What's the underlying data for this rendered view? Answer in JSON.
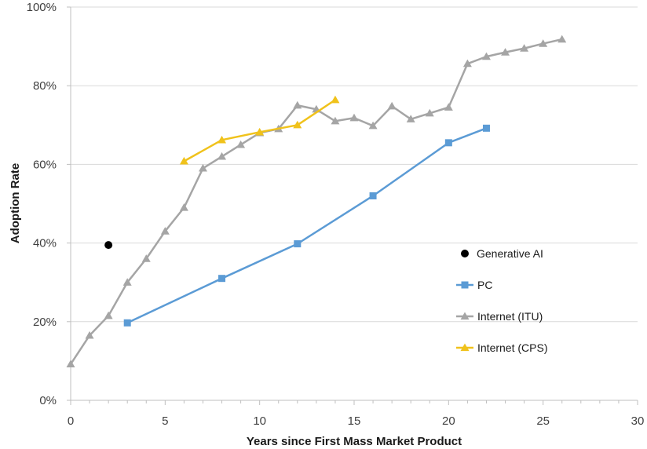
{
  "chart_data": {
    "type": "line",
    "title": "",
    "xlabel": "Years since First Mass Market Product",
    "ylabel": "Adoption Rate",
    "xlim": [
      0,
      30
    ],
    "ylim": [
      0,
      100
    ],
    "x_ticks": [
      0,
      5,
      10,
      15,
      20,
      25,
      30
    ],
    "y_ticks": [
      0,
      20,
      40,
      60,
      80,
      100
    ],
    "y_tick_format": "percent",
    "grid": "horizontal",
    "legend_position": "right",
    "series": [
      {
        "name": "Generative AI",
        "color": "#000000",
        "marker": "circle",
        "line": false,
        "points": [
          [
            2,
            39.5
          ]
        ]
      },
      {
        "name": "PC",
        "color": "#5b9bd5",
        "marker": "square",
        "line": true,
        "points": [
          [
            3,
            19.7
          ],
          [
            8,
            31
          ],
          [
            12,
            39.8
          ],
          [
            16,
            52
          ],
          [
            20,
            65.5
          ],
          [
            22,
            69.2
          ]
        ]
      },
      {
        "name": "Internet (ITU)",
        "color": "#a5a5a5",
        "marker": "triangle",
        "line": true,
        "points": [
          [
            0,
            9.2
          ],
          [
            1,
            16.5
          ],
          [
            2,
            21.5
          ],
          [
            3,
            30
          ],
          [
            4,
            36
          ],
          [
            5,
            43
          ],
          [
            6,
            49
          ],
          [
            7,
            59
          ],
          [
            8,
            62
          ],
          [
            9,
            65
          ],
          [
            10,
            68
          ],
          [
            11,
            69
          ],
          [
            12,
            75
          ],
          [
            13,
            74
          ],
          [
            14,
            71
          ],
          [
            15,
            71.8
          ],
          [
            16,
            69.8
          ],
          [
            17,
            74.8
          ],
          [
            18,
            71.5
          ],
          [
            19,
            73
          ],
          [
            20,
            74.5
          ],
          [
            21,
            85.6
          ],
          [
            22,
            87.4
          ],
          [
            23,
            88.5
          ],
          [
            24,
            89.5
          ],
          [
            25,
            90.7
          ],
          [
            26,
            91.8
          ]
        ]
      },
      {
        "name": "Internet (CPS)",
        "color": "#f0c21b",
        "marker": "triangle",
        "line": true,
        "points": [
          [
            6,
            60.8
          ],
          [
            8,
            66.2
          ],
          [
            10,
            68.2
          ],
          [
            12,
            70
          ],
          [
            14,
            76.4
          ]
        ]
      }
    ]
  }
}
